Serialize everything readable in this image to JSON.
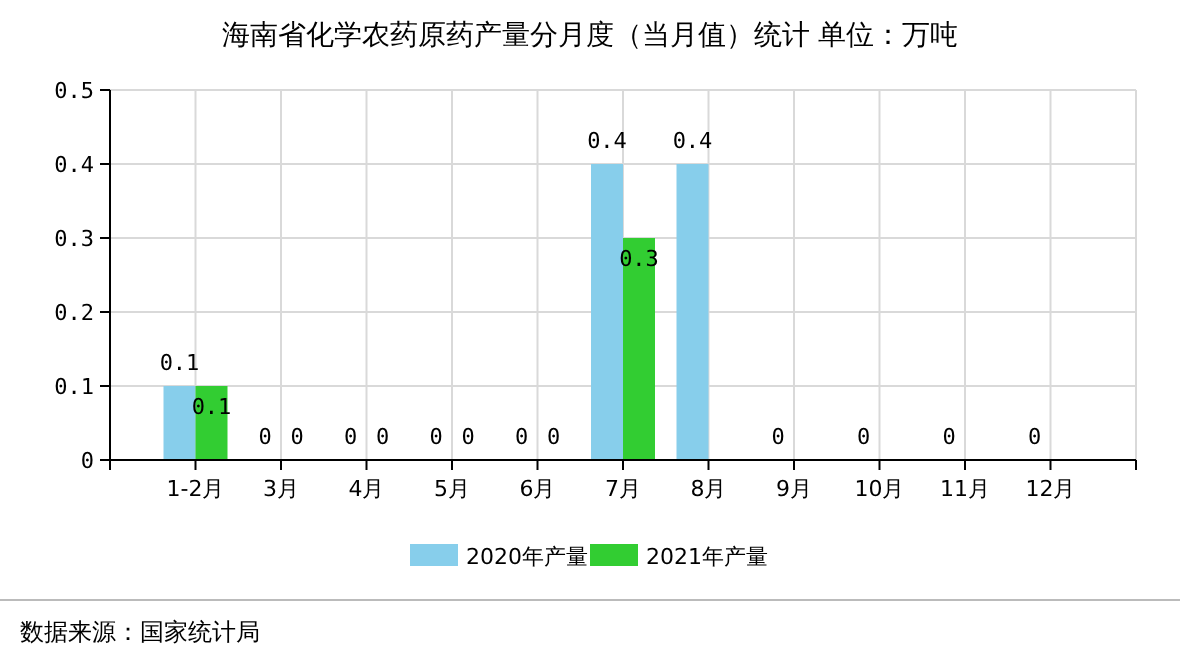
{
  "chart_data": {
    "type": "bar",
    "title": "海南省化学农药原药产量分月度（当月值）统计 单位：万吨",
    "categories": [
      "1-2月",
      "3月",
      "4月",
      "5月",
      "6月",
      "7月",
      "8月",
      "9月",
      "10月",
      "11月",
      "12月"
    ],
    "series": [
      {
        "name": "2020年产量",
        "color": "#87ceeb",
        "values": [
          0.1,
          0,
          0,
          0,
          0,
          0.4,
          0.4,
          0,
          0,
          0,
          0
        ]
      },
      {
        "name": "2021年产量",
        "color": "#32cd32",
        "values": [
          0.1,
          0,
          0,
          0,
          0,
          0.3,
          null,
          null,
          null,
          null,
          null
        ]
      }
    ],
    "ylim": [
      0,
      0.5
    ],
    "yticks": [
      0,
      0.1,
      0.2,
      0.3,
      0.4,
      0.5
    ],
    "grid": true,
    "legend": "bottom",
    "data_labels": true,
    "annotations": [
      "数据来源：国家统计局"
    ]
  }
}
